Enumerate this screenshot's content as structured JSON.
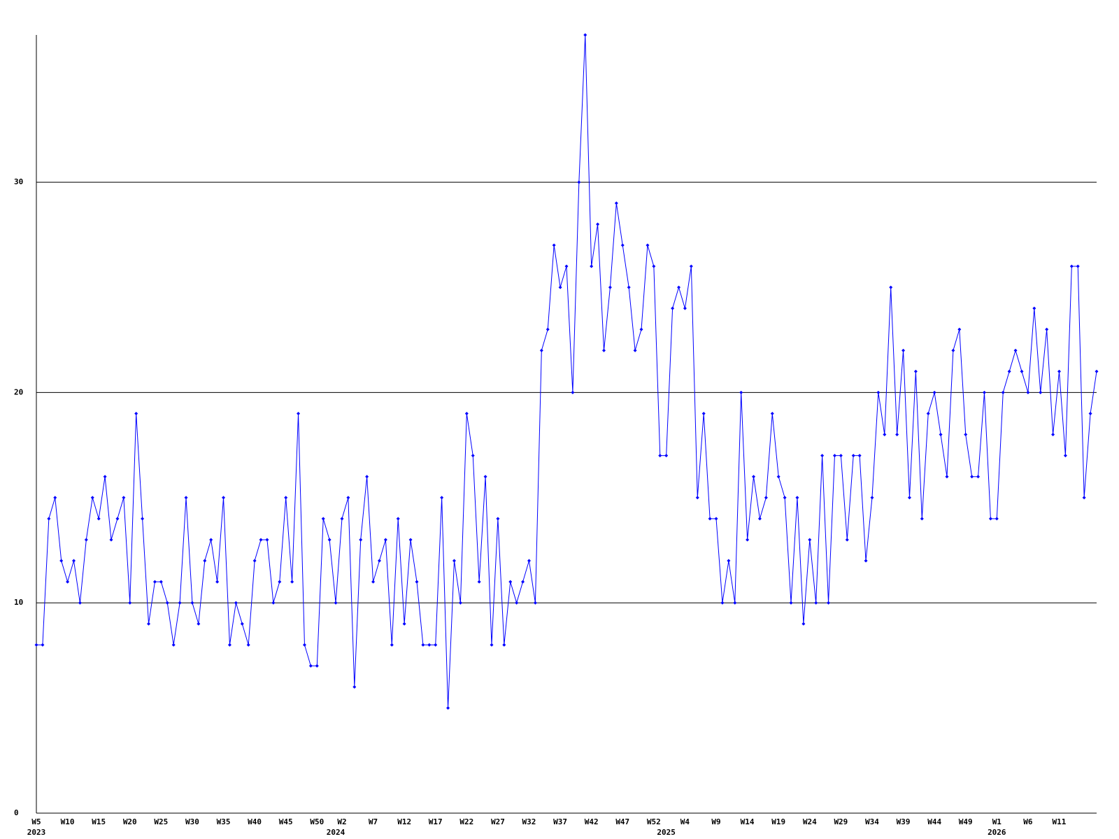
{
  "chart_data": {
    "type": "line",
    "categories": [
      "W5",
      null,
      null,
      null,
      null,
      "W10",
      null,
      null,
      null,
      null,
      "W15",
      null,
      null,
      null,
      null,
      "W20",
      null,
      null,
      null,
      null,
      "W25",
      null,
      null,
      null,
      null,
      "W30",
      null,
      null,
      null,
      null,
      "W35",
      null,
      null,
      null,
      null,
      "W40",
      null,
      null,
      null,
      null,
      "W45",
      null,
      null,
      null,
      null,
      "W50",
      null,
      null,
      null,
      "W2",
      null,
      null,
      null,
      null,
      "W7",
      null,
      null,
      null,
      null,
      "W12",
      null,
      null,
      null,
      null,
      "W17",
      null,
      null,
      null,
      null,
      "W22",
      null,
      null,
      null,
      null,
      "W27",
      null,
      null,
      null,
      null,
      "W32",
      null,
      null,
      null,
      null,
      "W37",
      null,
      null,
      null,
      null,
      "W42",
      null,
      null,
      null,
      null,
      "W47",
      null,
      null,
      null,
      null,
      "W52",
      null,
      null,
      null,
      null,
      "W4",
      null,
      null,
      null,
      null,
      "W9",
      null,
      null,
      null,
      null,
      "W14",
      null,
      null,
      null,
      null,
      "W19",
      null,
      null,
      null,
      null,
      "W24",
      null,
      null,
      null,
      null,
      "W29",
      null,
      null,
      null,
      null,
      "W34",
      null,
      null,
      null,
      null,
      "W39",
      null,
      null,
      null,
      null,
      "W44",
      null,
      null,
      null,
      null,
      "W49",
      null,
      null,
      null,
      null,
      "W1",
      null,
      null,
      null,
      null,
      "W6",
      null,
      null,
      null,
      null,
      "W11",
      null,
      null,
      null,
      null,
      null,
      null
    ],
    "years": [
      "2023",
      null,
      null,
      null,
      null,
      null,
      null,
      null,
      null,
      null,
      null,
      null,
      null,
      null,
      null,
      null,
      null,
      null,
      null,
      null,
      null,
      null,
      null,
      null,
      null,
      null,
      null,
      null,
      null,
      null,
      null,
      null,
      null,
      null,
      null,
      null,
      null,
      null,
      null,
      null,
      null,
      null,
      null,
      null,
      null,
      null,
      null,
      null,
      "2024",
      null,
      null,
      null,
      null,
      null,
      null,
      null,
      null,
      null,
      null,
      null,
      null,
      null,
      null,
      null,
      null,
      null,
      null,
      null,
      null,
      null,
      null,
      null,
      null,
      null,
      null,
      null,
      null,
      null,
      null,
      null,
      null,
      null,
      null,
      null,
      null,
      null,
      null,
      null,
      null,
      null,
      null,
      null,
      null,
      null,
      null,
      null,
      null,
      null,
      null,
      null,
      null,
      "2025",
      null,
      null,
      null,
      null,
      null,
      null,
      null,
      null,
      null,
      null,
      null,
      null,
      null,
      null,
      null,
      null,
      null,
      null,
      null,
      null,
      null,
      null,
      null,
      null,
      null,
      null,
      null,
      null,
      null,
      null,
      null,
      null,
      null,
      null,
      null,
      null,
      null,
      null,
      null,
      null,
      null,
      null,
      null,
      null,
      null,
      null,
      null,
      null,
      null,
      null,
      null,
      null,
      "2026",
      null,
      null,
      null,
      null,
      null,
      null,
      null,
      null,
      null,
      null,
      null,
      null,
      null,
      null,
      null,
      null
    ],
    "values": [
      8,
      8,
      14,
      15,
      12,
      11,
      12,
      10,
      13,
      15,
      14,
      16,
      13,
      14,
      15,
      10,
      19,
      14,
      9,
      11,
      11,
      10,
      8,
      10,
      15,
      10,
      9,
      12,
      13,
      11,
      15,
      8,
      10,
      9,
      8,
      12,
      13,
      13,
      10,
      11,
      15,
      11,
      19,
      8,
      7,
      7,
      14,
      13,
      10,
      14,
      15,
      6,
      13,
      16,
      11,
      12,
      13,
      8,
      14,
      9,
      13,
      11,
      8,
      8,
      8,
      15,
      5,
      12,
      10,
      19,
      17,
      11,
      16,
      8,
      14,
      8,
      11,
      10,
      11,
      12,
      10,
      22,
      23,
      27,
      25,
      26,
      20,
      30,
      37,
      26,
      28,
      22,
      25,
      29,
      27,
      25,
      22,
      23,
      27,
      26,
      17,
      17,
      24,
      25,
      24,
      26,
      15,
      19,
      14,
      14,
      10,
      12,
      10,
      20,
      13,
      16,
      14,
      15,
      19,
      16,
      15,
      10,
      15,
      9,
      13,
      10,
      17,
      10,
      17,
      17,
      13,
      17,
      17,
      12,
      15,
      20,
      18,
      25,
      18,
      22,
      15,
      21,
      14,
      19,
      20,
      18,
      16,
      22,
      23,
      18,
      16,
      16,
      20,
      14,
      14,
      20,
      21,
      22,
      21,
      20,
      24,
      20,
      23,
      18,
      21,
      17,
      26,
      26,
      15,
      19,
      21
    ],
    "color": "#0000ff",
    "ylim": [
      0,
      37
    ],
    "yticks": [
      0,
      10,
      20,
      30
    ],
    "grid": true
  }
}
